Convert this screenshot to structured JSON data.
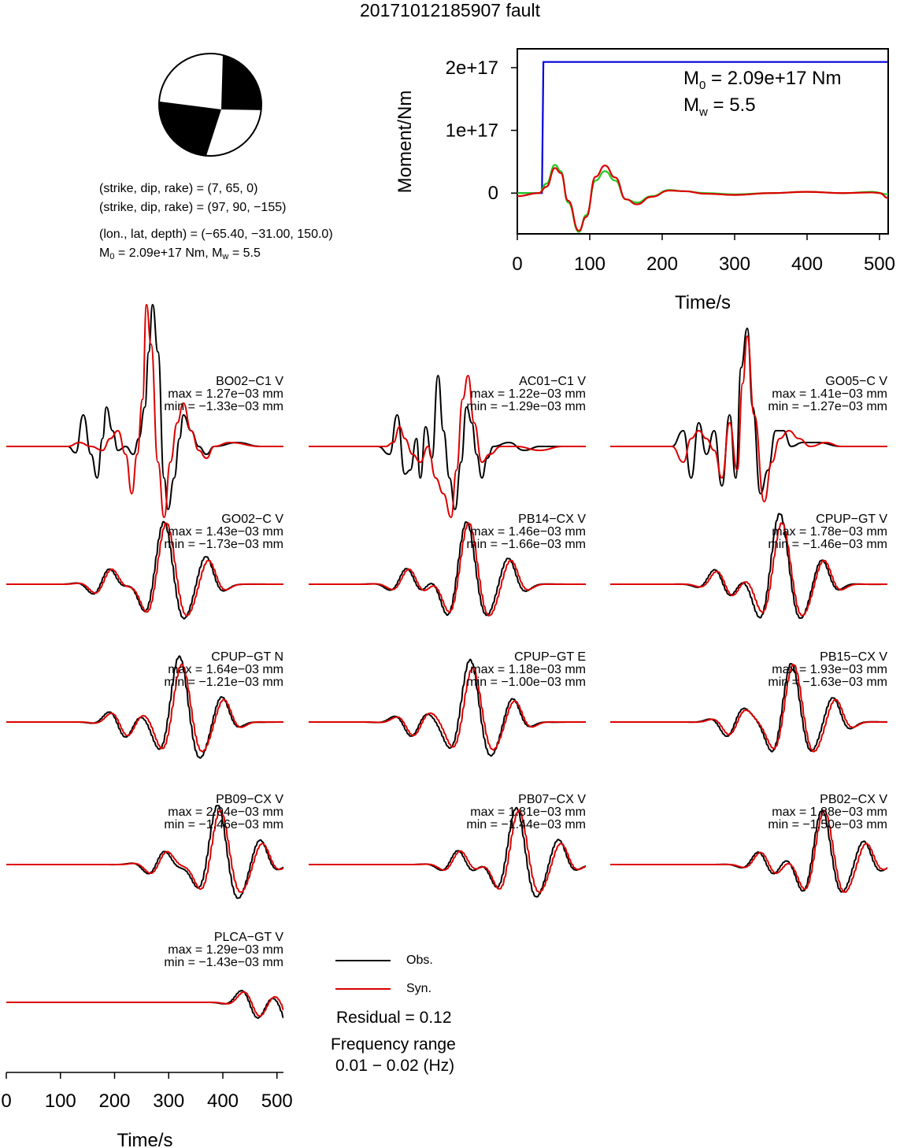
{
  "title": "20171012185907 fault",
  "mechanism": {
    "plane1": "(strike, dip, rake) = (7, 65, 0)",
    "plane2": "(strike, dip, rake) = (97, 90, −155)",
    "location": "(lon., lat, depth) = (−65.40, −31.00, 150.0)",
    "m0_label": "M",
    "m0_sub": "0",
    "m0_text": " = 2.09e+17 Nm, M",
    "mw_sub": "w",
    "mw_text": " = 5.5"
  },
  "moment_panel": {
    "ylabel": "Moment/Nm",
    "xlabel": "Time/s",
    "m0_prefix": "M",
    "m0_sub": "0",
    "m0_value": " = 2.09e+17 Nm",
    "mw_prefix": "M",
    "mw_sub": "w",
    "mw_value": " = 5.5"
  },
  "colors": {
    "cumulative_moment": "#0000dd",
    "moment_rate_1": "#dd0000",
    "moment_rate_2": "#22cc22",
    "observed": "#000000",
    "synthetic": "#dd0000"
  },
  "legend": {
    "obs": "Obs.",
    "syn": "Syn.",
    "residual": "Residual = 0.12",
    "freq_title": "Frequency range",
    "freq_value": "0.01 − 0.02 (Hz)"
  },
  "waveform_axis": {
    "xlabel": "Time/s",
    "xticks": [
      "0",
      "100",
      "200",
      "300",
      "400",
      "500"
    ]
  },
  "chart_data": [
    {
      "type": "line",
      "description_of": "cumulative moment and moment-rate functions",
      "xlabel": "Time/s",
      "ylabel": "Moment/Nm",
      "xlim": [
        0,
        512
      ],
      "ylim": [
        -6.5e+16,
        2.3e+17
      ],
      "xticks": [
        "0",
        "100",
        "200",
        "300",
        "400",
        "500"
      ],
      "yticks": [
        "0",
        "1e+17",
        "2e+17"
      ],
      "ytick_values": [
        0,
        1e+17,
        2e+17
      ],
      "series": [
        {
          "color": "#0000dd",
          "x": [
            0,
            34,
            36,
            512
          ],
          "y": [
            0,
            0,
            2.09e+17,
            2.09e+17
          ]
        },
        {
          "color": "#22cc22",
          "x": [
            0,
            30,
            40,
            52,
            60,
            70,
            85,
            95,
            108,
            121,
            135,
            150,
            165,
            185,
            210,
            230,
            260,
            300,
            350,
            400,
            450,
            490,
            512
          ],
          "y": [
            0,
            0,
            1.5e+16,
            4.5e+16,
            3.5e+16,
            -1.5e+16,
            -6.2e+16,
            -3.5e+16,
            2e+16,
            3.5e+16,
            2e+16,
            -1e+16,
            -1.5e+16,
            -5000000000000000.0,
            5000000000000000.0,
            3000000000000000.0,
            0,
            -2000000000000000.0,
            0,
            2000000000000000.0,
            0,
            2000000000000000.0,
            -2000000000000000.0
          ]
        },
        {
          "color": "#dd0000",
          "x": [
            0,
            30,
            40,
            52,
            60,
            70,
            85,
            95,
            108,
            121,
            135,
            150,
            165,
            185,
            210,
            230,
            260,
            300,
            350,
            400,
            450,
            490,
            500,
            512
          ],
          "y": [
            -5000000000000000.0,
            0,
            1e+16,
            4e+16,
            3.2e+16,
            -1.2e+16,
            -6e+16,
            -3.8e+16,
            2.6e+16,
            4.4e+16,
            2.5e+16,
            -1e+16,
            -1.8e+16,
            -6000000000000000.0,
            4000000000000000.0,
            3000000000000000.0,
            -1000000000000000.0,
            -3000000000000000.0,
            0,
            2000000000000000.0,
            0,
            1000000000000000.0,
            0,
            -8000000000000000.0
          ]
        }
      ]
    },
    {
      "type": "line",
      "description_of": "observed vs synthetic seismograms",
      "xlabel": "Time/s",
      "xlim": [
        0,
        512
      ],
      "xticks": [
        "0",
        "100",
        "200",
        "300",
        "400",
        "500"
      ],
      "stations": [
        {
          "name": "BO02−C1 V",
          "max": "max = 1.27e−03 mm",
          "min": "min = −1.33e−03 mm",
          "obs": [
            [
              0,
              0
            ],
            [
              80,
              0
            ],
            [
              90,
              -8
            ],
            [
              100,
              40
            ],
            [
              110,
              -10
            ],
            [
              118,
              -40
            ],
            [
              125,
              10
            ],
            [
              130,
              50
            ],
            [
              138,
              20
            ],
            [
              145,
              -5
            ],
            [
              155,
              0
            ],
            [
              165,
              -10
            ],
            [
              172,
              10
            ],
            [
              180,
              50
            ],
            [
              185,
              120
            ],
            [
              190,
              180
            ],
            [
              197,
              120
            ],
            [
              205,
              -40
            ],
            [
              210,
              -80
            ],
            [
              218,
              -40
            ],
            [
              225,
              10
            ],
            [
              230,
              40
            ],
            [
              240,
              20
            ],
            [
              250,
              0
            ],
            [
              260,
              -10
            ],
            [
              270,
              0
            ],
            [
              300,
              5
            ],
            [
              330,
              0
            ],
            [
              360,
              0
            ]
          ],
          "syn": [
            [
              0,
              0
            ],
            [
              80,
              0
            ],
            [
              95,
              5
            ],
            [
              110,
              0
            ],
            [
              125,
              -5
            ],
            [
              135,
              10
            ],
            [
              145,
              20
            ],
            [
              155,
              -10
            ],
            [
              163,
              -60
            ],
            [
              170,
              -10
            ],
            [
              177,
              60
            ],
            [
              182,
              180
            ],
            [
              188,
              130
            ],
            [
              197,
              -20
            ],
            [
              205,
              -90
            ],
            [
              213,
              -20
            ],
            [
              222,
              30
            ],
            [
              230,
              55
            ],
            [
              240,
              20
            ],
            [
              250,
              -5
            ],
            [
              260,
              -15
            ],
            [
              270,
              0
            ],
            [
              290,
              5
            ],
            [
              330,
              0
            ],
            [
              360,
              0
            ]
          ]
        },
        {
          "name": "AC01−C1 V",
          "max": "max = 1.22e−03 mm",
          "min": "min = −1.29e−03 mm",
          "obs": [
            [
              0,
              0
            ],
            [
              90,
              0
            ],
            [
              105,
              -10
            ],
            [
              115,
              40
            ],
            [
              125,
              -35
            ],
            [
              132,
              -30
            ],
            [
              140,
              10
            ],
            [
              145,
              -40
            ],
            [
              152,
              25
            ],
            [
              160,
              -15
            ],
            [
              168,
              90
            ],
            [
              175,
              20
            ],
            [
              183,
              -40
            ],
            [
              190,
              -80
            ],
            [
              198,
              -20
            ],
            [
              205,
              50
            ],
            [
              212,
              30
            ],
            [
              218,
              -10
            ],
            [
              225,
              -40
            ],
            [
              232,
              -15
            ],
            [
              240,
              0
            ],
            [
              260,
              5
            ],
            [
              280,
              -5
            ],
            [
              300,
              0
            ],
            [
              360,
              0
            ]
          ],
          "syn": [
            [
              0,
              0
            ],
            [
              100,
              0
            ],
            [
              110,
              5
            ],
            [
              118,
              25
            ],
            [
              125,
              10
            ],
            [
              135,
              -10
            ],
            [
              145,
              -20
            ],
            [
              155,
              0
            ],
            [
              165,
              -40
            ],
            [
              175,
              -60
            ],
            [
              185,
              -90
            ],
            [
              192,
              -30
            ],
            [
              200,
              60
            ],
            [
              207,
              90
            ],
            [
              215,
              30
            ],
            [
              225,
              -20
            ],
            [
              235,
              -10
            ],
            [
              250,
              0
            ],
            [
              270,
              0
            ],
            [
              300,
              -5
            ],
            [
              330,
              0
            ],
            [
              360,
              0
            ]
          ]
        },
        {
          "name": "GO05−C V",
          "max": "max = 1.41e−03 mm",
          "min": "min = −1.27e−03 mm",
          "obs": [
            [
              0,
              0
            ],
            [
              80,
              0
            ],
            [
              95,
              20
            ],
            [
              105,
              -40
            ],
            [
              115,
              30
            ],
            [
              125,
              -10
            ],
            [
              135,
              20
            ],
            [
              145,
              -50
            ],
            [
              155,
              40
            ],
            [
              163,
              -40
            ],
            [
              170,
              100
            ],
            [
              178,
              150
            ],
            [
              185,
              50
            ],
            [
              195,
              -60
            ],
            [
              205,
              -30
            ],
            [
              215,
              20
            ],
            [
              225,
              20
            ],
            [
              235,
              0
            ],
            [
              250,
              5
            ],
            [
              270,
              5
            ],
            [
              300,
              0
            ],
            [
              360,
              0
            ]
          ],
          "syn": [
            [
              0,
              0
            ],
            [
              80,
              0
            ],
            [
              95,
              -20
            ],
            [
              105,
              10
            ],
            [
              115,
              20
            ],
            [
              125,
              10
            ],
            [
              135,
              -5
            ],
            [
              145,
              -40
            ],
            [
              155,
              30
            ],
            [
              165,
              -30
            ],
            [
              172,
              80
            ],
            [
              178,
              140
            ],
            [
              187,
              40
            ],
            [
              200,
              -70
            ],
            [
              210,
              -20
            ],
            [
              220,
              10
            ],
            [
              232,
              20
            ],
            [
              245,
              10
            ],
            [
              260,
              0
            ],
            [
              280,
              5
            ],
            [
              300,
              0
            ],
            [
              360,
              0
            ]
          ]
        }
      ]
    }
  ]
}
